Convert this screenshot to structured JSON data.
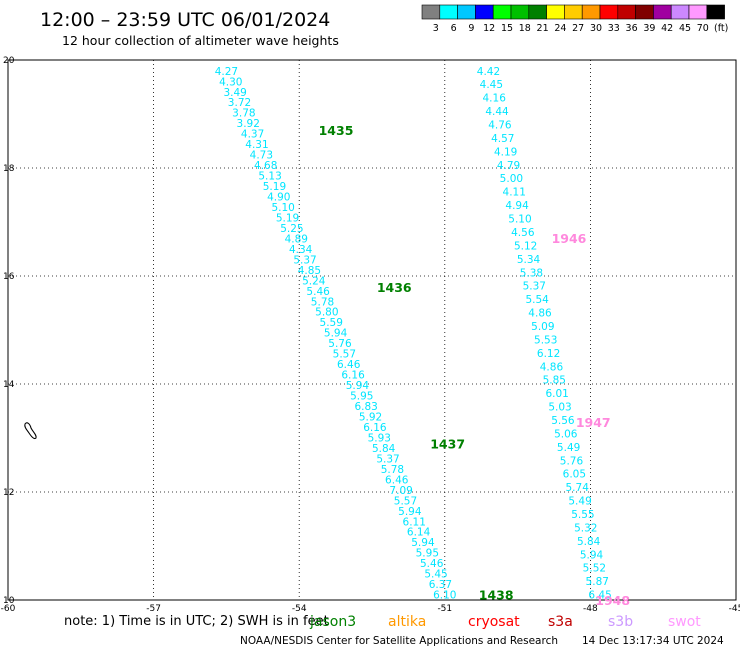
{
  "header": {
    "title": "12:00 – 23:59 UTC 06/01/2024",
    "subtitle": "12 hour collection of altimeter wave heights"
  },
  "legend": {
    "unit": "(ft)",
    "bins": [
      {
        "label": "3",
        "color": "#808080"
      },
      {
        "label": "6",
        "color": "#00ffff"
      },
      {
        "label": "9",
        "color": "#00c8ff"
      },
      {
        "label": "12",
        "color": "#0000ff"
      },
      {
        "label": "15",
        "color": "#00ff00"
      },
      {
        "label": "18",
        "color": "#00c000"
      },
      {
        "label": "21",
        "color": "#008000"
      },
      {
        "label": "24",
        "color": "#ffff00"
      },
      {
        "label": "27",
        "color": "#ffcc00"
      },
      {
        "label": "30",
        "color": "#ff9900"
      },
      {
        "label": "33",
        "color": "#ff0000"
      },
      {
        "label": "36",
        "color": "#c00000"
      },
      {
        "label": "39",
        "color": "#800000"
      },
      {
        "label": "42",
        "color": "#a000a0"
      },
      {
        "label": "45",
        "color": "#cc88ff"
      },
      {
        "label": "70",
        "color": "#ff99ff"
      },
      {
        "label": "",
        "color": "#000000"
      }
    ]
  },
  "map": {
    "lon_range": [
      -60,
      -45
    ],
    "lat_range": [
      10,
      20
    ],
    "lon_ticks": [
      "-60",
      "-57",
      "-54",
      "-51",
      "-48",
      "-45"
    ],
    "lat_ticks": [
      "20",
      "18",
      "16",
      "14",
      "12",
      "10"
    ],
    "grid": true
  },
  "tracks": [
    {
      "color": "#00e5ff",
      "lon_start": -55.5,
      "lat_start": 19.8,
      "lon_end": -51.0,
      "lat_end": 10.1,
      "values": [
        "4.27",
        "4.30",
        "3.49",
        "3.72",
        "3.78",
        "3.92",
        "4.37",
        "4.31",
        "4.73",
        "4.68",
        "5.13",
        "5.19",
        "4.90",
        "5.10",
        "5.19",
        "5.25",
        "4.89",
        "4.34",
        "5.37",
        "4.85",
        "5.24",
        "5.46",
        "5.78",
        "5.80",
        "5.59",
        "5.94",
        "5.76",
        "5.57",
        "6.46",
        "6.16",
        "5.94",
        "5.95",
        "6.83",
        "5.92",
        "6.16",
        "5.93",
        "5.84",
        "5.37",
        "5.78",
        "6.46",
        "7.09",
        "5.57",
        "5.94",
        "6.11",
        "6.14",
        "5.94",
        "5.95",
        "5.46",
        "5.45",
        "6.37",
        "6.10"
      ]
    },
    {
      "color": "#00e5ff",
      "lon_start": -50.1,
      "lat_start": 19.8,
      "lon_end": -47.8,
      "lat_end": 10.1,
      "values": [
        "4.42",
        "4.45",
        "4.16",
        "4.44",
        "4.76",
        "4.57",
        "4.19",
        "4.79",
        "5.00",
        "4.11",
        "4.94",
        "5.10",
        "4.56",
        "5.12",
        "5.34",
        "5.38",
        "5.37",
        "5.54",
        "4.86",
        "5.09",
        "5.53",
        "6.12",
        "4.86",
        "5.85",
        "6.01",
        "5.03",
        "5.56",
        "5.06",
        "5.49",
        "5.76",
        "6.05",
        "5.74",
        "5.49",
        "5.55",
        "5.32",
        "5.84",
        "5.94",
        "5.52",
        "5.87",
        "6.45"
      ]
    }
  ],
  "pass_labels": [
    {
      "text": "1435",
      "color": "#008000",
      "lon": -53.6,
      "lat": 18.7
    },
    {
      "text": "1436",
      "color": "#008000",
      "lon": -52.4,
      "lat": 15.8
    },
    {
      "text": "1437",
      "color": "#008000",
      "lon": -51.3,
      "lat": 12.9
    },
    {
      "text": "1438",
      "color": "#008000",
      "lon": -50.3,
      "lat": 10.1
    },
    {
      "text": "1946",
      "color": "#ff88dd",
      "lon": -48.8,
      "lat": 16.7
    },
    {
      "text": "1947",
      "color": "#ff88dd",
      "lon": -48.3,
      "lat": 13.3
    },
    {
      "text": "1948",
      "color": "#ff88dd",
      "lon": -47.9,
      "lat": 10.0
    }
  ],
  "note": {
    "text": "note: 1) Time is in UTC; 2) SWH is in feet"
  },
  "satellites": [
    {
      "name": "jason3",
      "color": "#008000"
    },
    {
      "name": "altika",
      "color": "#ff9900"
    },
    {
      "name": "cryosat",
      "color": "#ff0000"
    },
    {
      "name": "s3a",
      "color": "#c00000"
    },
    {
      "name": "s3b",
      "color": "#cc99ff"
    },
    {
      "name": "swot",
      "color": "#ff99ff"
    }
  ],
  "footer": {
    "credit": "NOAA/NESDIS Center for Satellite Applications and Research",
    "timestamp": "14 Dec 13:17:34 UTC 2024"
  }
}
